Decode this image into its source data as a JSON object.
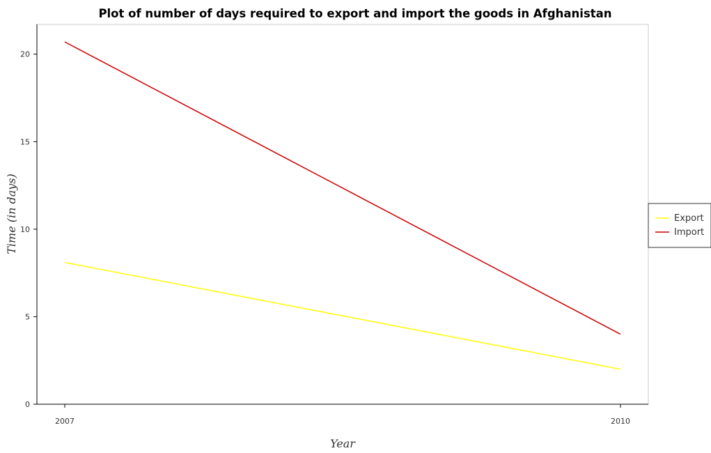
{
  "chart_data": {
    "type": "line",
    "title": "Plot of number of days required to export and import the goods in Afghanistan",
    "xlabel": "Year",
    "ylabel": "Time (in days)",
    "x": [
      "2007",
      "2010"
    ],
    "series": [
      {
        "name": "Export",
        "values": [
          8.1,
          2.0
        ],
        "color": "#ffff00"
      },
      {
        "name": "Import",
        "values": [
          20.7,
          4.0
        ],
        "color": "#cc0000"
      }
    ],
    "ylim": [
      0,
      21.7
    ],
    "yticks": [
      0,
      5,
      10,
      15,
      20
    ],
    "grid": false,
    "legend": "right"
  }
}
